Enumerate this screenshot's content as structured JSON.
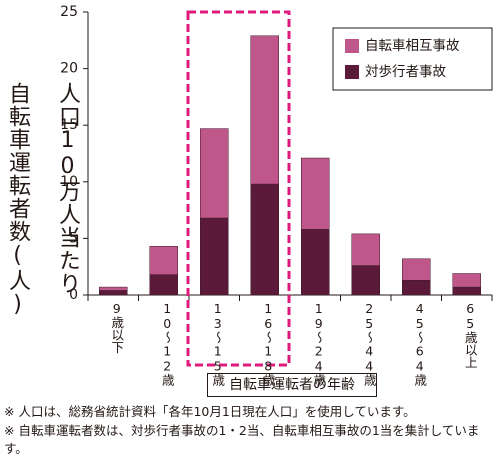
{
  "chart_data": {
    "type": "stacked-bar",
    "ylabel": [
      "人口10万人当たり",
      "自転車運転者数(人)"
    ],
    "xlabel": "自転車運転者の年齢",
    "categories": [
      "9歳以下",
      "10～12歳",
      "13～15歳",
      "16～18歳",
      "19～24歳",
      "25～44歳",
      "45～64歳",
      "65歳以上"
    ],
    "series": [
      {
        "name": "対歩行者事故",
        "color": "#5c1a3a",
        "values": [
          0.4,
          1.8,
          6.8,
          9.8,
          5.8,
          2.6,
          1.3,
          0.7
        ]
      },
      {
        "name": "自転車相互事故",
        "color": "#c0578a",
        "values": [
          0.3,
          2.5,
          7.9,
          13.1,
          6.3,
          2.8,
          1.9,
          1.2
        ]
      }
    ],
    "ylim": [
      0,
      25
    ],
    "yticks": [
      0,
      5,
      10,
      15,
      20,
      25
    ],
    "legend": "top-right",
    "notes": [
      "※ 人口は、総務省統計資料「各年10月1日現在人口」を使用しています。",
      "※ 自転車運転者数は、対歩行者事故の1・2当、自転車相互事故の1当を集計しています。"
    ]
  }
}
